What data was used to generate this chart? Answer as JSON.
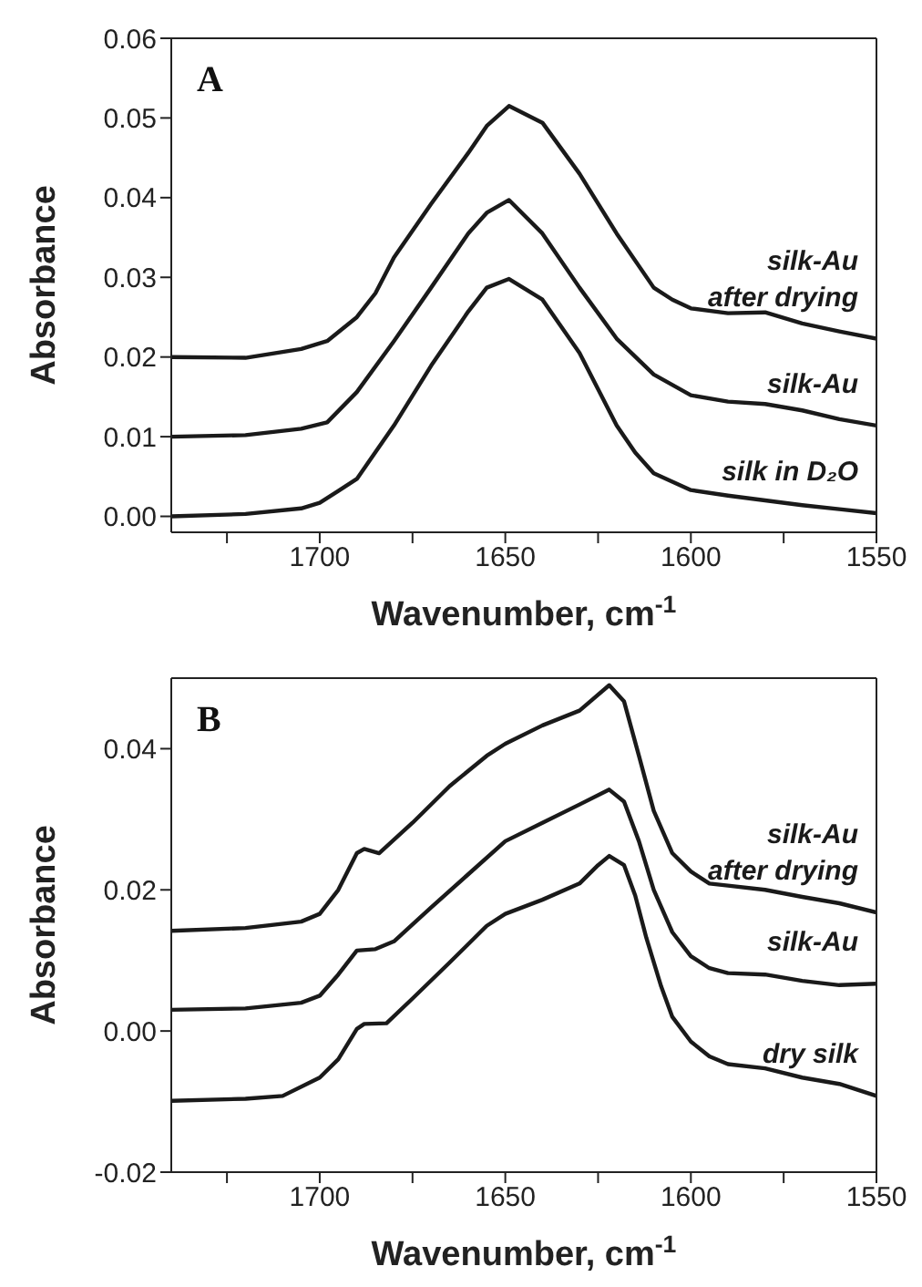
{
  "chart_data": [
    {
      "type": "line",
      "title": "A",
      "xlabel": "Wavenumber, cm$^{-1}$",
      "ylabel": "Absorbance",
      "xlim": [
        1740,
        1550
      ],
      "xticks": [
        {
          "value": 1725,
          "label": null
        },
        1700,
        {
          "value": 1675,
          "label": null
        },
        1650,
        {
          "value": 1625,
          "label": null
        },
        1600,
        {
          "value": 1575,
          "label": null
        },
        1550
      ],
      "ylim": [
        -0.002,
        0.06
      ],
      "yticks": [
        {
          "value": 0,
          "label": "0.00"
        },
        {
          "value": 0.01,
          "label": "0.01"
        },
        {
          "value": 0.02,
          "label": "0.02"
        },
        {
          "value": 0.03,
          "label": "0.03"
        },
        {
          "value": 0.04,
          "label": "0.04"
        },
        {
          "value": 0.05,
          "label": "0.05"
        },
        {
          "value": 0.06,
          "label": "0.06"
        }
      ],
      "legend": false,
      "grid": false,
      "marker": "none",
      "line_style": "solid",
      "series": [
        {
          "name": "silk-Au\nafter drying",
          "color": "#1a1a1a",
          "x": [
            1740,
            1720,
            1705,
            1698,
            1690,
            1685,
            1680,
            1670,
            1660,
            1655,
            1649,
            1640,
            1630,
            1620,
            1610,
            1605,
            1600,
            1590,
            1580,
            1570,
            1560,
            1550
          ],
          "values": [
            0.02,
            0.0199,
            0.021,
            0.022,
            0.025,
            0.028,
            0.0325,
            0.0392,
            0.0456,
            0.049,
            0.0515,
            0.0494,
            0.043,
            0.0355,
            0.0287,
            0.0272,
            0.0261,
            0.0255,
            0.0256,
            0.0242,
            0.0232,
            0.0223
          ]
        },
        {
          "name": "silk-Au",
          "color": "#1a1a1a",
          "x": [
            1740,
            1720,
            1705,
            1698,
            1690,
            1680,
            1670,
            1660,
            1655,
            1649,
            1640,
            1630,
            1620,
            1610,
            1600,
            1590,
            1580,
            1570,
            1560,
            1550
          ],
          "values": [
            0.01,
            0.0102,
            0.011,
            0.0118,
            0.0156,
            0.022,
            0.0287,
            0.0355,
            0.0381,
            0.0397,
            0.0355,
            0.0287,
            0.0223,
            0.0178,
            0.0152,
            0.0144,
            0.0141,
            0.0133,
            0.0122,
            0.0114
          ]
        },
        {
          "name": "silk in D₂O",
          "color": "#1a1a1a",
          "x": [
            1740,
            1720,
            1705,
            1700,
            1695,
            1690,
            1680,
            1670,
            1660,
            1655,
            1649,
            1640,
            1630,
            1620,
            1615,
            1610,
            1600,
            1590,
            1580,
            1570,
            1560,
            1550
          ],
          "values": [
            0,
            0.0003,
            0.001,
            0.0017,
            0.0032,
            0.0047,
            0.0114,
            0.0189,
            0.0257,
            0.0287,
            0.0298,
            0.0272,
            0.0205,
            0.0114,
            0.008,
            0.0054,
            0.0033,
            0.0026,
            0.002,
            0.0014,
            0.0009,
            0.0004
          ]
        }
      ]
    },
    {
      "type": "line",
      "title": "B",
      "xlabel": "Wavenumber, cm$^{-1}$",
      "ylabel": "Absorbance",
      "xlim": [
        1740,
        1550
      ],
      "xticks": [
        {
          "value": 1725,
          "label": null
        },
        1700,
        {
          "value": 1675,
          "label": null
        },
        1650,
        {
          "value": 1625,
          "label": null
        },
        1600,
        {
          "value": 1575,
          "label": null
        },
        1550
      ],
      "ylim": [
        -0.02,
        0.05
      ],
      "yticks": [
        {
          "value": -0.02,
          "label": "-0.02"
        },
        {
          "value": 0,
          "label": "0.00"
        },
        {
          "value": 0.02,
          "label": "0.02"
        },
        {
          "value": 0.04,
          "label": "0.04"
        }
      ],
      "legend": false,
      "grid": false,
      "marker": "none",
      "line_style": "solid",
      "series": [
        {
          "name": "silk-Au\nafter drying",
          "color": "#1a1a1a",
          "x": [
            1740,
            1720,
            1705,
            1700,
            1695,
            1690,
            1688,
            1684,
            1675,
            1665,
            1655,
            1650,
            1640,
            1630,
            1622,
            1618,
            1614,
            1610,
            1605,
            1600,
            1595,
            1590,
            1580,
            1570,
            1560,
            1550
          ],
          "values": [
            0.0142,
            0.0146,
            0.0155,
            0.0166,
            0.02,
            0.0252,
            0.0258,
            0.0252,
            0.0295,
            0.0347,
            0.039,
            0.0407,
            0.0433,
            0.0454,
            0.049,
            0.0467,
            0.039,
            0.0312,
            0.0252,
            0.0226,
            0.0209,
            0.0206,
            0.02,
            0.019,
            0.0181,
            0.0168
          ]
        },
        {
          "name": "silk-Au",
          "color": "#1a1a1a",
          "x": [
            1740,
            1720,
            1705,
            1700,
            1695,
            1690,
            1685,
            1680,
            1670,
            1660,
            1650,
            1640,
            1630,
            1622,
            1618,
            1614,
            1610,
            1605,
            1600,
            1595,
            1590,
            1580,
            1570,
            1560,
            1550
          ],
          "values": [
            0.003,
            0.0032,
            0.004,
            0.005,
            0.008,
            0.0114,
            0.0116,
            0.0127,
            0.0175,
            0.0222,
            0.0269,
            0.0295,
            0.0321,
            0.0342,
            0.0325,
            0.0269,
            0.02,
            0.014,
            0.0106,
            0.0089,
            0.0082,
            0.008,
            0.0071,
            0.0065,
            0.0067
          ]
        },
        {
          "name": "dry silk",
          "color": "#1a1a1a",
          "x": [
            1740,
            1720,
            1710,
            1700,
            1695,
            1690,
            1688,
            1682,
            1675,
            1665,
            1655,
            1650,
            1640,
            1630,
            1625,
            1622,
            1618,
            1615,
            1612,
            1608,
            1605,
            1600,
            1595,
            1590,
            1580,
            1570,
            1560,
            1550
          ],
          "values": [
            -0.0099,
            -0.0096,
            -0.0092,
            -0.0066,
            -0.004,
            0.0003,
            0.001,
            0.0011,
            0.0046,
            0.0097,
            0.0149,
            0.0166,
            0.0186,
            0.0209,
            0.0235,
            0.0248,
            0.0235,
            0.0192,
            0.0132,
            0.0063,
            0.002,
            -0.0015,
            -0.0036,
            -0.0047,
            -0.0053,
            -0.0066,
            -0.0075,
            -0.0092
          ]
        }
      ]
    }
  ]
}
